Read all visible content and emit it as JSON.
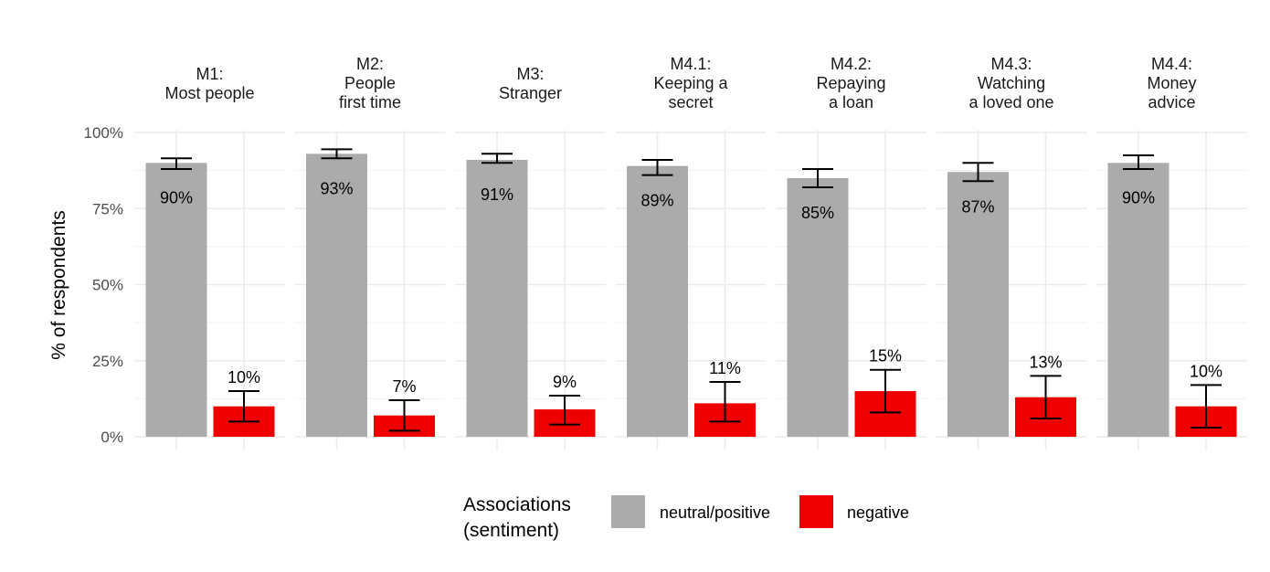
{
  "chart_data": {
    "type": "bar",
    "ylabel": "% of respondents",
    "ylim": [
      0,
      100
    ],
    "y_ticks": [
      "0%",
      "25%",
      "50%",
      "75%",
      "100%"
    ],
    "grid": true,
    "legend": {
      "title_lines": [
        "Associations",
        "(sentiment)"
      ],
      "position": "bottom",
      "entries": [
        {
          "label": "neutral/positive",
          "color": "#ababab"
        },
        {
          "label": "negative",
          "color": "#ee0000"
        }
      ]
    },
    "categories": [
      "neutral/positive",
      "negative"
    ],
    "facets": [
      {
        "title_lines": [
          "M1:",
          "Most people"
        ],
        "bars": [
          {
            "value": 90,
            "lo": 88,
            "hi": 91.5,
            "label": "90%"
          },
          {
            "value": 10,
            "lo": 5,
            "hi": 15,
            "label": "10%"
          }
        ]
      },
      {
        "title_lines": [
          "M2:",
          "People",
          "first time"
        ],
        "bars": [
          {
            "value": 93,
            "lo": 91.5,
            "hi": 94.5,
            "label": "93%"
          },
          {
            "value": 7,
            "lo": 2,
            "hi": 12,
            "label": "7%"
          }
        ]
      },
      {
        "title_lines": [
          "M3:",
          "Stranger"
        ],
        "bars": [
          {
            "value": 91,
            "lo": 90,
            "hi": 93,
            "label": "91%"
          },
          {
            "value": 9,
            "lo": 4,
            "hi": 13.5,
            "label": "9%"
          }
        ]
      },
      {
        "title_lines": [
          "M4.1:",
          "Keeping a",
          "secret"
        ],
        "bars": [
          {
            "value": 89,
            "lo": 86,
            "hi": 91,
            "label": "89%"
          },
          {
            "value": 11,
            "lo": 5,
            "hi": 18,
            "label": "11%"
          }
        ]
      },
      {
        "title_lines": [
          "M4.2:",
          "Repaying",
          "a loan"
        ],
        "bars": [
          {
            "value": 85,
            "lo": 82,
            "hi": 88,
            "label": "85%"
          },
          {
            "value": 15,
            "lo": 8,
            "hi": 22,
            "label": "15%"
          }
        ]
      },
      {
        "title_lines": [
          "M4.3:",
          "Watching",
          "a loved one"
        ],
        "bars": [
          {
            "value": 87,
            "lo": 84,
            "hi": 90,
            "label": "87%"
          },
          {
            "value": 13,
            "lo": 6,
            "hi": 20,
            "label": "13%"
          }
        ]
      },
      {
        "title_lines": [
          "M4.4:",
          "Money",
          "advice"
        ],
        "bars": [
          {
            "value": 90,
            "lo": 88,
            "hi": 92.5,
            "label": "90%"
          },
          {
            "value": 10,
            "lo": 3,
            "hi": 17,
            "label": "10%"
          }
        ]
      }
    ]
  }
}
